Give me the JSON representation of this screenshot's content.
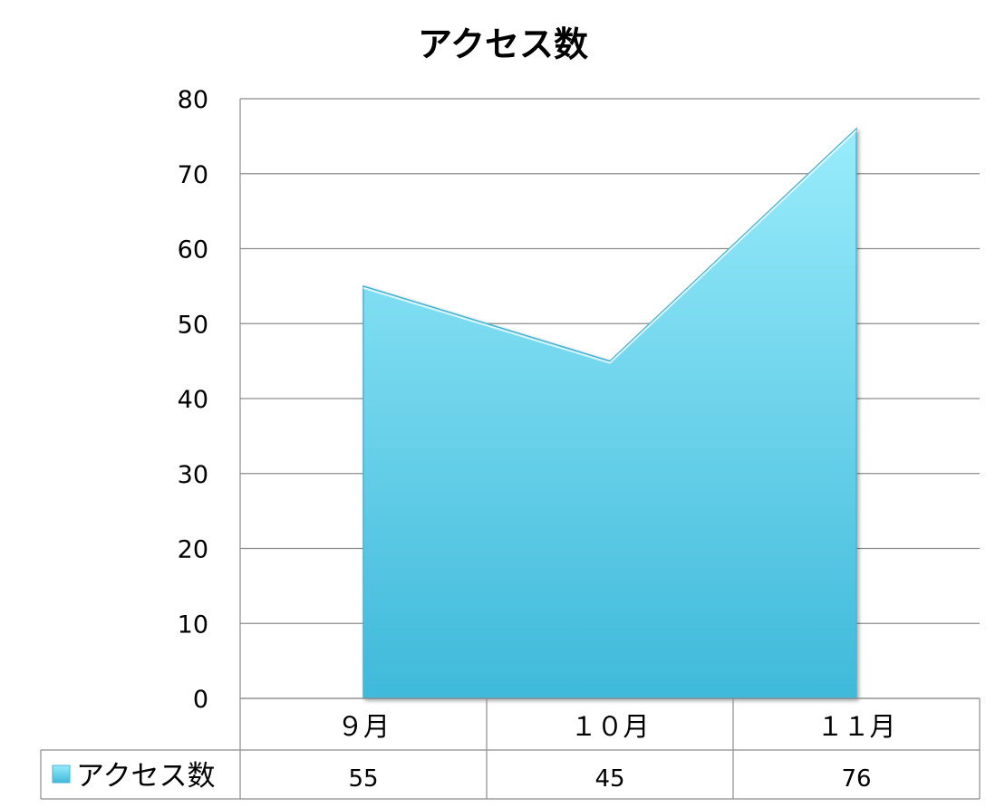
{
  "chart_data": {
    "type": "area",
    "title": "アクセス数",
    "categories": [
      "９月",
      "１０月",
      "１１月"
    ],
    "series": [
      {
        "name": "アクセス数",
        "values": [
          55,
          45,
          76
        ]
      }
    ],
    "ylim": [
      0,
      80
    ],
    "yticks": [
      0,
      10,
      20,
      30,
      40,
      50,
      60,
      70,
      80
    ],
    "grid": true,
    "legend": "data-table",
    "data_table": true,
    "colors": {
      "area_top": "#99ecfb",
      "area_bottom": "#3fb9da",
      "area_edge": "#46b4d3",
      "grid": "#8c8c8c"
    }
  }
}
